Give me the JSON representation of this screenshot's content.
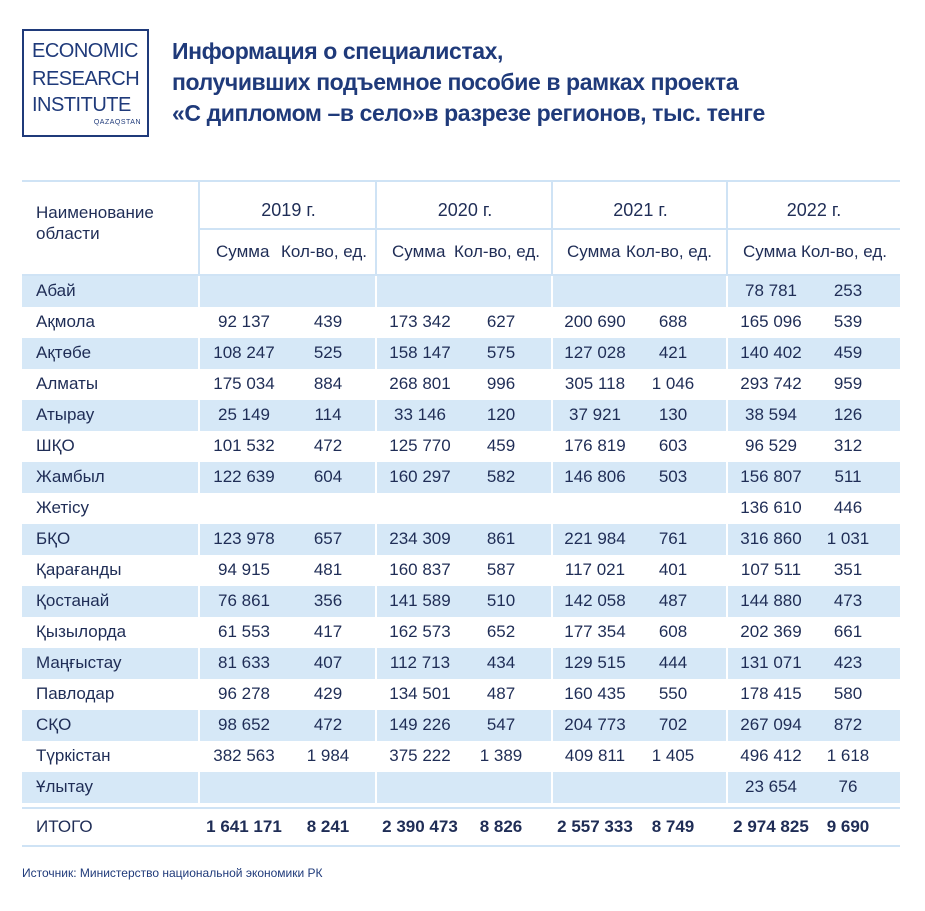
{
  "logo": {
    "line1": "ECONOMIC",
    "line2": "RESEARCH",
    "line3": "INSTITUTE",
    "line4": "QAZAQSTAN"
  },
  "title": {
    "line1": "Информация о специалистах,",
    "line2": "получивших подъемное пособие в рамках проекта",
    "line3": "«С дипломом –в село»в разрезе регионов, тыс. тенге"
  },
  "table": {
    "region_header": "Наименование\nобласти",
    "years": [
      "2019 г.",
      "2020 г.",
      "2021 г.",
      "2022 г."
    ],
    "sum_label": "Сумма",
    "count_label": "Кол-во, ед.",
    "rows": [
      {
        "region": "Абай",
        "values": [
          "",
          "",
          "",
          "",
          "",
          "",
          "78 781",
          "253"
        ]
      },
      {
        "region": "Ақмола",
        "values": [
          "92 137",
          "439",
          "173 342",
          "627",
          "200 690",
          "688",
          "165 096",
          "539"
        ]
      },
      {
        "region": "Ақтөбе",
        "values": [
          "108 247",
          "525",
          "158 147",
          "575",
          "127 028",
          "421",
          "140 402",
          "459"
        ]
      },
      {
        "region": "Алматы",
        "values": [
          "175 034",
          "884",
          "268 801",
          "996",
          "305 118",
          "1 046",
          "293 742",
          "959"
        ]
      },
      {
        "region": "Атырау",
        "values": [
          "25 149",
          "114",
          "33 146",
          "120",
          "37 921",
          "130",
          "38 594",
          "126"
        ]
      },
      {
        "region": "ШҚО",
        "values": [
          "101 532",
          "472",
          "125 770",
          "459",
          "176 819",
          "603",
          "96 529",
          "312"
        ]
      },
      {
        "region": "Жамбыл",
        "values": [
          "122 639",
          "604",
          "160 297",
          "582",
          "146 806",
          "503",
          "156 807",
          "511"
        ]
      },
      {
        "region": "Жетісу",
        "values": [
          "",
          "",
          "",
          "",
          "",
          "",
          "136 610",
          "446"
        ]
      },
      {
        "region": "БҚО",
        "values": [
          "123 978",
          "657",
          "234 309",
          "861",
          "221 984",
          "761",
          "316 860",
          "1 031"
        ]
      },
      {
        "region": "Қарағанды",
        "values": [
          "94 915",
          "481",
          "160 837",
          "587",
          "117 021",
          "401",
          "107 511",
          "351"
        ]
      },
      {
        "region": "Қостанай",
        "values": [
          "76 861",
          "356",
          "141 589",
          "510",
          "142 058",
          "487",
          "144 880",
          "473"
        ]
      },
      {
        "region": "Қызылорда",
        "values": [
          "61 553",
          "417",
          "162 573",
          "652",
          "177 354",
          "608",
          "202 369",
          "661"
        ]
      },
      {
        "region": "Маңғыстау",
        "values": [
          "81 633",
          "407",
          "112 713",
          "434",
          "129 515",
          "444",
          "131 071",
          "423"
        ]
      },
      {
        "region": "Павлодар",
        "values": [
          "96 278",
          "429",
          "134 501",
          "487",
          "160 435",
          "550",
          "178 415",
          "580"
        ]
      },
      {
        "region": "СҚО",
        "values": [
          "98 652",
          "472",
          "149 226",
          "547",
          "204 773",
          "702",
          "267 094",
          "872"
        ]
      },
      {
        "region": "Түркістан",
        "values": [
          "382 563",
          "1 984",
          "375 222",
          "1 389",
          "409 811",
          "1 405",
          "496 412",
          "1 618"
        ]
      },
      {
        "region": "Ұлытау",
        "values": [
          "",
          "",
          "",
          "",
          "",
          "",
          "23 654",
          "76"
        ]
      }
    ],
    "total": {
      "label": "ИТОГО",
      "values": [
        "1 641 171",
        "8 241",
        "2 390 473",
        "8 826",
        "2 557 333",
        "8 749",
        "2 974 825",
        "9 690"
      ]
    }
  },
  "source": "Источник: Министерство национальной экономики РК",
  "colors": {
    "accent": "#1f3a7a",
    "row_shade": "#d6e8f7",
    "rule": "#cfe3f5"
  }
}
